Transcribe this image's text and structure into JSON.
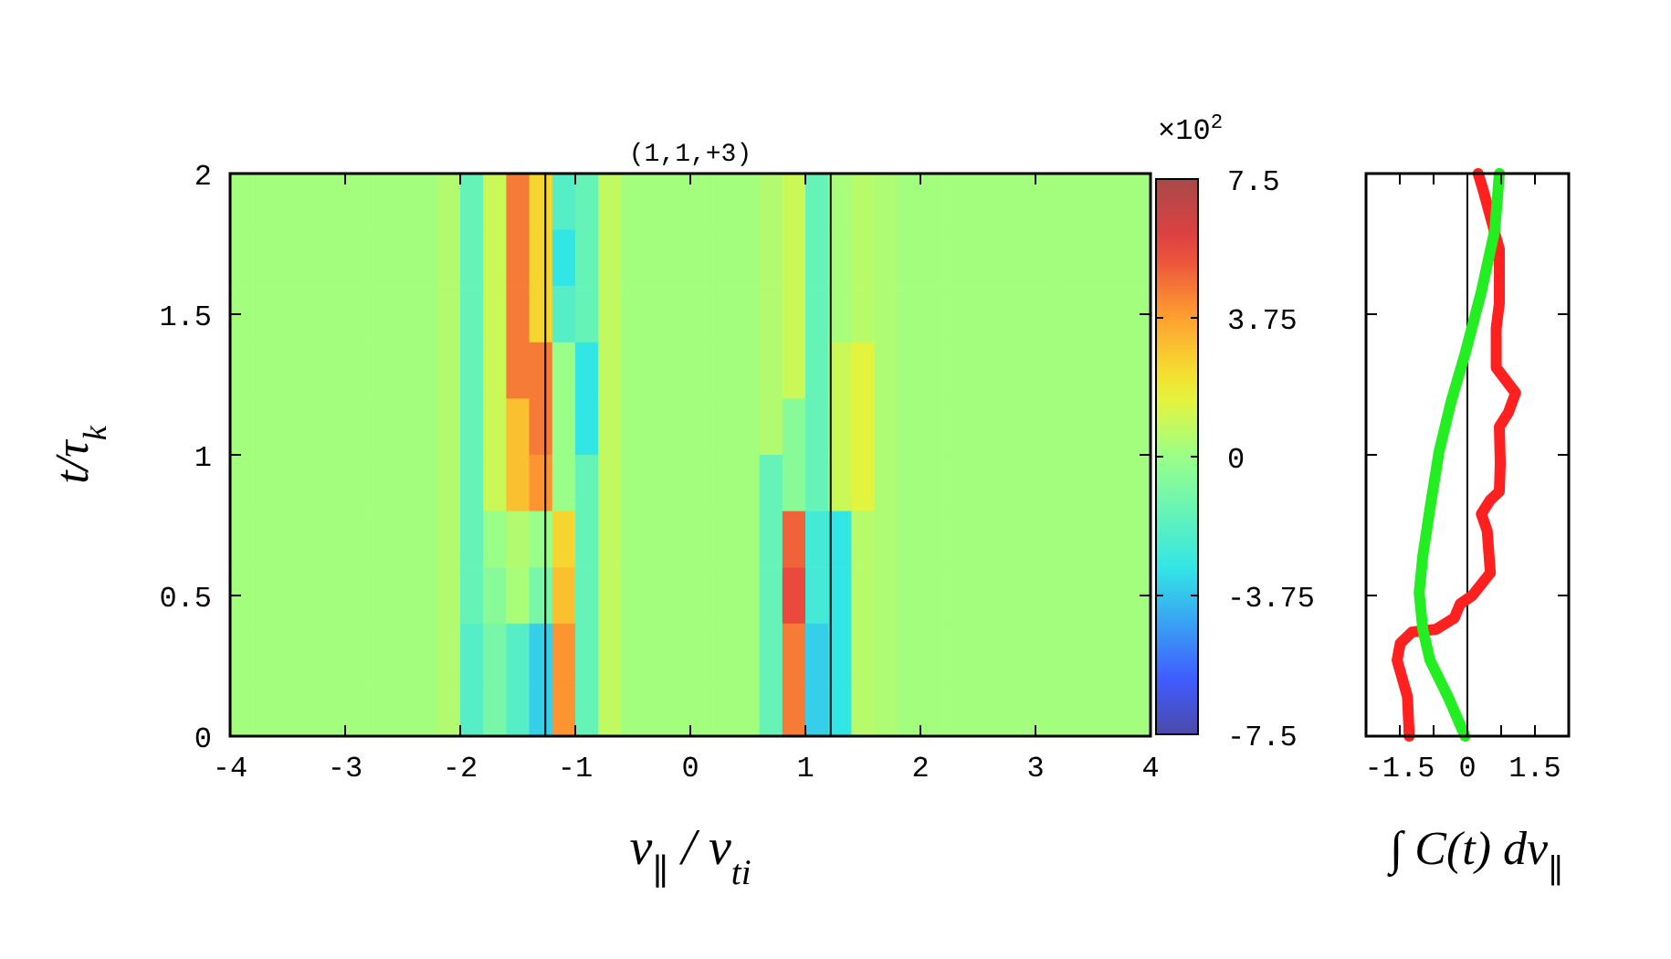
{
  "chart_data": [
    {
      "type": "heatmap",
      "title": "(1,1,+3)",
      "xlabel": "v$_{∥}$ / v$_{ti}$",
      "ylabel": "t/τ$_{k}$",
      "clabel": "×10$^{2}$",
      "x": [
        -3.9,
        -3.7,
        -3.5,
        -3.3,
        -3.1,
        -2.9,
        -2.7,
        -2.5,
        -2.3,
        -2.1,
        -1.9,
        -1.7,
        -1.5,
        -1.3,
        -1.1,
        -0.9,
        -0.7,
        -0.5,
        -0.3,
        -0.1,
        0.1,
        0.3,
        0.5,
        0.7,
        0.9,
        1.1,
        1.3,
        1.5,
        1.7,
        1.9,
        2.1,
        2.3,
        2.5,
        2.7,
        2.9,
        3.1,
        3.3,
        3.5,
        3.7,
        3.9
      ],
      "xlim": [
        -4,
        4
      ],
      "xticks": [
        -4,
        -3,
        -2,
        -1,
        0,
        1,
        2,
        3,
        4
      ],
      "ylim": [
        0,
        2
      ],
      "yticks": [
        0,
        0.5,
        1,
        1.5,
        2
      ],
      "clim": [
        -7.5,
        7.5
      ],
      "cticks": [
        7.5,
        3.75,
        0,
        -3.75,
        -7.5
      ],
      "ref_lines": [
        {
          "axis": "x",
          "value": -1.26,
          "color": "#000000"
        },
        {
          "axis": "x",
          "value": 1.22,
          "color": "#000000"
        }
      ],
      "cells": [
        [
          0.2,
          0.2,
          0.2,
          0.2,
          0.2,
          0.2,
          0.2,
          0.2,
          0.2,
          0.5,
          -1.5,
          1,
          4.5,
          2.5,
          -2,
          -1.5,
          0.8,
          0.2,
          0.2,
          0.2,
          0.2,
          0.2,
          0.2,
          0.5,
          1,
          -1.5,
          0.3,
          0.6,
          0.4,
          0.2,
          0.2,
          0.2,
          0.2,
          0.2,
          0.2,
          0.2,
          0.2,
          0.2,
          0.2,
          0.2
        ],
        [
          0.2,
          0.2,
          0.2,
          0.2,
          0.2,
          0.2,
          0.2,
          0.2,
          0.2,
          0.5,
          -1.5,
          1,
          4.5,
          2.5,
          -3,
          -1.5,
          0.8,
          0.2,
          0.2,
          0.2,
          0.2,
          0.2,
          0.2,
          0.5,
          1,
          -1.5,
          0.3,
          0.6,
          0.4,
          0.2,
          0.2,
          0.2,
          0.2,
          0.2,
          0.2,
          0.2,
          0.2,
          0.2,
          0.2,
          0.2
        ],
        [
          0.2,
          0.2,
          0.2,
          0.2,
          0.2,
          0.2,
          0.2,
          0.2,
          0.2,
          0.5,
          -1.5,
          1,
          4.5,
          2.5,
          -2,
          -1.5,
          0.8,
          0.2,
          0.2,
          0.2,
          0.2,
          0.2,
          0.2,
          0.5,
          1,
          -1.5,
          0.3,
          0.6,
          0.4,
          0.2,
          0.2,
          0.2,
          0.2,
          0.2,
          0.2,
          0.2,
          0.2,
          0.2,
          0.2,
          0.2
        ],
        [
          0.2,
          0.2,
          0.2,
          0.2,
          0.2,
          0.2,
          0.2,
          0.2,
          0.2,
          0.5,
          -1.5,
          1,
          4.5,
          4.5,
          0,
          -3,
          0.8,
          0.2,
          0.2,
          0.2,
          0.2,
          0.2,
          0.2,
          0.5,
          1,
          -1.5,
          1,
          1.5,
          0.4,
          0.2,
          0.2,
          0.2,
          0.2,
          0.2,
          0.2,
          0.2,
          0.2,
          0.2,
          0.2,
          0.2
        ],
        [
          0.2,
          0.2,
          0.2,
          0.2,
          0.2,
          0.2,
          0.2,
          0.2,
          0.2,
          0.5,
          -1.5,
          1,
          3,
          4.5,
          0,
          -3,
          0.8,
          0.2,
          0.2,
          0.2,
          0.2,
          0.2,
          0.2,
          0.5,
          -0.5,
          -1.5,
          1,
          1.5,
          0.4,
          0.2,
          0.2,
          0.2,
          0.2,
          0.2,
          0.2,
          0.2,
          0.2,
          0.2,
          0.2,
          0.2
        ],
        [
          0.2,
          0.2,
          0.2,
          0.2,
          0.2,
          0.2,
          0.2,
          0.2,
          0.2,
          0.5,
          -1.5,
          1,
          3,
          4,
          0,
          -1.5,
          0.8,
          0.2,
          0.2,
          0.2,
          0.2,
          0.2,
          0.2,
          -1.5,
          -0.5,
          -1.5,
          1,
          1.5,
          0.4,
          0.2,
          0.2,
          0.2,
          0.2,
          0.2,
          0.2,
          0.2,
          0.2,
          0.2,
          0.2,
          0.2
        ],
        [
          0.2,
          0.2,
          0.2,
          0.2,
          0.2,
          0.2,
          0.2,
          0.2,
          0.2,
          0.5,
          -1.5,
          0,
          0.5,
          0,
          2.5,
          -1.5,
          0.8,
          0.2,
          0.2,
          0.2,
          0.2,
          0.2,
          0.2,
          -1.5,
          5,
          -2.5,
          -3,
          0.6,
          0.4,
          0.2,
          0.2,
          0.2,
          0.2,
          0.2,
          0.2,
          0.2,
          0.2,
          0.2,
          0.2,
          0.2
        ],
        [
          0.2,
          0.2,
          0.2,
          0.2,
          0.2,
          0.2,
          0.2,
          0.2,
          0.2,
          0.5,
          -1.5,
          -0.5,
          0.3,
          -1,
          3,
          -1.5,
          0.8,
          0.2,
          0.2,
          0.2,
          0.2,
          0.2,
          0.2,
          -1.5,
          5.5,
          -2.5,
          -3,
          0.6,
          0.4,
          0.2,
          0.2,
          0.2,
          0.2,
          0.2,
          0.2,
          0.2,
          0.2,
          0.2,
          0.2,
          0.2
        ],
        [
          0.2,
          0.2,
          0.2,
          0.2,
          0.2,
          0.2,
          0.2,
          0.2,
          0.2,
          0.5,
          -2,
          -1,
          -2,
          -3.5,
          4,
          -1.5,
          0.8,
          0.2,
          0.2,
          0.2,
          0.2,
          0.2,
          0.2,
          -1.5,
          4.5,
          -3.5,
          -3,
          0.6,
          0.4,
          0.2,
          0.2,
          0.2,
          0.2,
          0.2,
          0.2,
          0.2,
          0.2,
          0.2,
          0.2,
          0.2
        ],
        [
          0.2,
          0.2,
          0.2,
          0.2,
          0.2,
          0.2,
          0.2,
          0.2,
          0.2,
          0.5,
          -2,
          -1,
          -2,
          -3.5,
          4,
          -1.5,
          0.8,
          0.2,
          0.2,
          0.2,
          0.2,
          0.2,
          0.2,
          -1.5,
          4.5,
          -3.5,
          -3,
          0.6,
          0.4,
          0.2,
          0.2,
          0.2,
          0.2,
          0.2,
          0.2,
          0.2,
          0.2,
          0.2,
          0.2,
          0.2
        ]
      ]
    },
    {
      "type": "line",
      "xlabel": "∫ C(t) dv$_{∥}$",
      "xlim": [
        -2.25,
        2.25
      ],
      "xticks": [
        -1.5,
        {
          "value": -0.75,
          "label": null
        },
        0,
        {
          "value": 0.75,
          "label": null
        },
        1.5
      ],
      "ylim": [
        0,
        2
      ],
      "yticks": [
        {
          "value": 0,
          "label": null
        },
        {
          "value": 0.5,
          "label": null
        },
        {
          "value": 1,
          "label": null
        },
        {
          "value": 1.5,
          "label": null
        },
        {
          "value": 2,
          "label": null
        }
      ],
      "tick_labels": "x",
      "ref_lines": [
        {
          "axis": "x",
          "value": 0,
          "color": "#000000"
        }
      ],
      "series": [
        {
          "color": "#ff2020",
          "x": [
            -1.29,
            -1.33,
            -1.56,
            -1.49,
            -1.23,
            -0.69,
            -0.29,
            -0.16,
            0.11,
            0.51,
            0.44,
            0.31,
            0.51,
            0.71,
            0.73,
            0.71,
            0.91,
            1.07,
            0.64,
            0.64,
            0.71,
            0.71,
            0.37,
            0.24
          ],
          "values": [
            0,
            0.14,
            0.27,
            0.33,
            0.37,
            0.38,
            0.42,
            0.47,
            0.5,
            0.58,
            0.73,
            0.79,
            0.84,
            0.87,
            0.97,
            1.1,
            1.15,
            1.22,
            1.31,
            1.45,
            1.54,
            1.73,
            1.93,
            2
          ]
        },
        {
          "color": "#22ee22",
          "x": [
            -0.05,
            -0.43,
            -0.83,
            -0.99,
            -1.07,
            -0.99,
            -0.83,
            -0.63,
            -0.36,
            -0.05,
            0.31,
            0.61,
            0.71
          ],
          "values": [
            0,
            0.14,
            0.27,
            0.38,
            0.51,
            0.64,
            0.81,
            1.01,
            1.19,
            1.36,
            1.58,
            1.8,
            2
          ]
        }
      ]
    }
  ]
}
